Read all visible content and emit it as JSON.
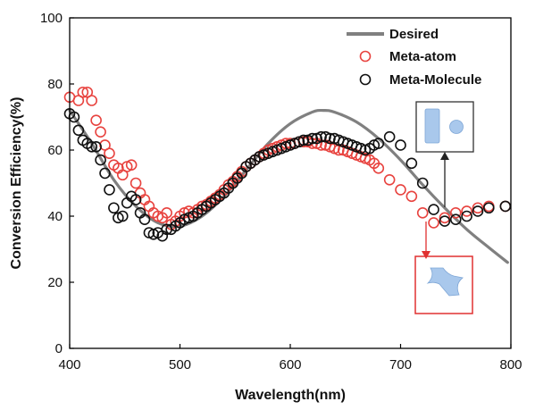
{
  "chart_data": {
    "type": "scatter",
    "title": "",
    "xlabel": "Wavelength(nm)",
    "ylabel": "Conversion Efficiency(%)",
    "xlim": [
      400,
      800
    ],
    "ylim": [
      0,
      100
    ],
    "x_ticks": [
      400,
      500,
      600,
      700,
      800
    ],
    "y_ticks": [
      0,
      20,
      40,
      60,
      80,
      100
    ],
    "grid": false,
    "legend_position": "top-right",
    "series": [
      {
        "name": "Desired",
        "kind": "line",
        "color": "#808080",
        "x": [
          400,
          420,
          440,
          460,
          480,
          500,
          520,
          540,
          560,
          580,
          600,
          620,
          630,
          640,
          660,
          680,
          700,
          720,
          740,
          760,
          780,
          797
        ],
        "y": [
          72,
          62,
          51,
          43,
          38,
          37,
          40,
          46,
          54,
          62,
          68,
          71.5,
          72,
          71.5,
          68.5,
          63.5,
          57,
          49.5,
          42.5,
          36,
          30.5,
          26
        ]
      },
      {
        "name": "Meta-atom",
        "kind": "marker",
        "color": "#e8433f",
        "x": [
          400,
          408,
          412,
          416,
          420,
          424,
          428,
          432,
          436,
          440,
          444,
          448,
          452,
          456,
          460,
          464,
          468,
          472,
          476,
          480,
          484,
          488,
          492,
          496,
          500,
          504,
          508,
          512,
          516,
          520,
          524,
          528,
          532,
          536,
          540,
          544,
          548,
          552,
          556,
          560,
          564,
          568,
          572,
          576,
          580,
          584,
          588,
          592,
          596,
          600,
          604,
          608,
          612,
          616,
          620,
          624,
          628,
          632,
          636,
          640,
          644,
          648,
          652,
          656,
          660,
          664,
          668,
          672,
          676,
          680,
          690,
          700,
          710,
          720,
          730,
          740,
          750,
          760,
          770,
          780,
          795
        ],
        "y": [
          76,
          75,
          77.5,
          77.5,
          75,
          69,
          65.5,
          61.5,
          59,
          55.5,
          54.5,
          52.5,
          55,
          55.5,
          50,
          47,
          45,
          43,
          41,
          40,
          39.5,
          41,
          37.5,
          38.5,
          40,
          41,
          41.5,
          41,
          42,
          43,
          43.5,
          44.5,
          45.5,
          46.5,
          48,
          49.5,
          50.5,
          52,
          53.5,
          55,
          56,
          57,
          58,
          59,
          60,
          60.5,
          61,
          61.5,
          62,
          62,
          62,
          62.5,
          62.5,
          62.5,
          62,
          62,
          61.5,
          61.5,
          61,
          60.5,
          60,
          60,
          59.5,
          59,
          58.5,
          58,
          57.5,
          57,
          56,
          54.5,
          51,
          48,
          46,
          41,
          38,
          39.5,
          41,
          41.5,
          42.5,
          43,
          43
        ]
      },
      {
        "name": "Meta-Molecule",
        "kind": "marker",
        "color": "#111111",
        "x": [
          400,
          404,
          408,
          412,
          416,
          420,
          424,
          428,
          432,
          436,
          440,
          444,
          448,
          452,
          456,
          460,
          464,
          468,
          472,
          476,
          480,
          484,
          488,
          492,
          496,
          500,
          504,
          508,
          512,
          516,
          520,
          524,
          528,
          532,
          536,
          540,
          544,
          548,
          552,
          556,
          560,
          564,
          568,
          572,
          576,
          580,
          584,
          588,
          592,
          596,
          600,
          604,
          608,
          612,
          616,
          620,
          624,
          628,
          632,
          636,
          640,
          644,
          648,
          652,
          656,
          660,
          664,
          668,
          672,
          676,
          680,
          690,
          700,
          710,
          720,
          730,
          740,
          750,
          760,
          770,
          780,
          795
        ],
        "y": [
          71,
          70,
          66,
          63,
          62,
          61,
          61,
          57,
          53,
          48,
          42.5,
          39.5,
          40,
          44,
          46,
          45,
          41,
          39,
          35,
          34.5,
          35,
          34,
          36,
          36,
          37,
          38,
          39,
          39.5,
          40,
          41,
          42,
          43,
          44,
          45,
          46,
          47,
          48.5,
          50,
          51.5,
          53,
          55,
          56,
          57,
          58,
          58.5,
          59,
          59.5,
          60,
          60.5,
          61,
          61.5,
          62,
          62.5,
          63,
          63,
          63.5,
          63.5,
          64,
          64,
          63.5,
          63.5,
          63,
          62.5,
          62,
          61.5,
          61,
          60.5,
          60,
          60.5,
          61.5,
          62,
          64,
          61.5,
          56,
          50,
          42,
          38.5,
          39,
          40,
          41.5,
          42.5,
          43
        ]
      }
    ]
  },
  "insets": {
    "meta_molecule_box_color": "#333333",
    "meta_atom_box_color": "#e03030",
    "shape_color": "#a9c8ec"
  }
}
